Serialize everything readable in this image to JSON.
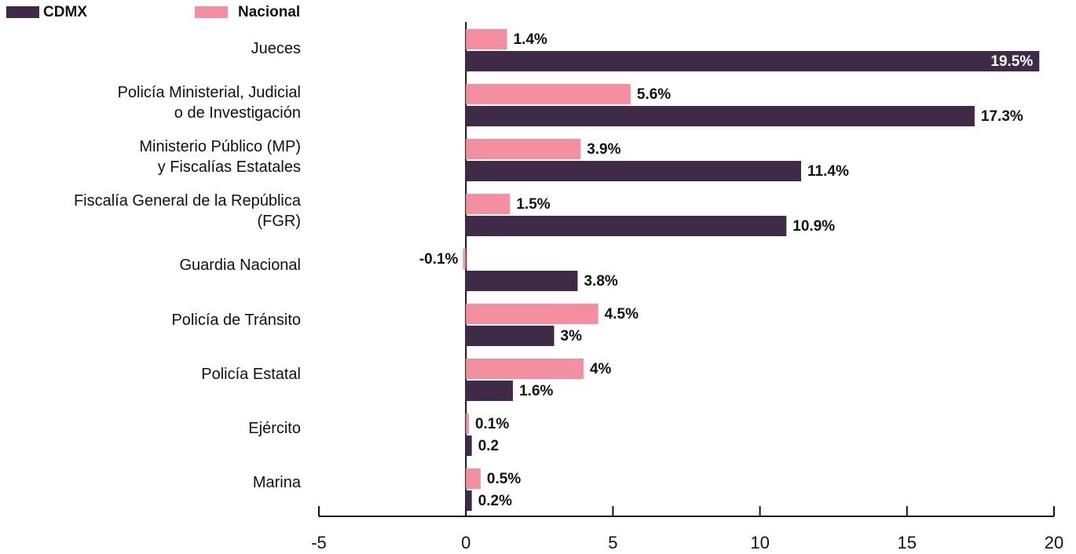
{
  "chart_data": {
    "type": "barh",
    "categories": [
      "Jueces",
      "Policía Ministerial, Judicial\no de Investigación",
      "Ministerio Público (MP)\ny Fiscalías Estatales",
      "Fiscalía General de la República\n(FGR)",
      "Guardia Nacional",
      "Policía de Tránsito",
      "Policía Estatal",
      "Ejército",
      "Marina"
    ],
    "series": [
      {
        "name": "Nacional",
        "color": "#f48fa0",
        "values": [
          1.4,
          5.6,
          3.9,
          1.5,
          -0.1,
          4.5,
          4,
          0.1,
          0.5
        ],
        "value_labels": [
          "1.4%",
          "5.6%",
          "3.9%",
          "1.5%",
          "-0.1%",
          "4.5%",
          "4%",
          "0.1%",
          "0.5%"
        ]
      },
      {
        "name": "CDMX",
        "color": "#3f2a47",
        "values": [
          19.5,
          17.3,
          11.4,
          10.9,
          3.8,
          3,
          1.6,
          0.2,
          0.2
        ],
        "value_labels": [
          "19.5%",
          "17.3%",
          "11.4%",
          "10.9%",
          "3.8%",
          "3%",
          "1.6%",
          "0.2",
          "0.2%"
        ]
      }
    ],
    "xlim": [
      -5,
      20
    ],
    "xticks": [
      -5,
      0,
      5,
      10,
      15,
      20
    ]
  }
}
